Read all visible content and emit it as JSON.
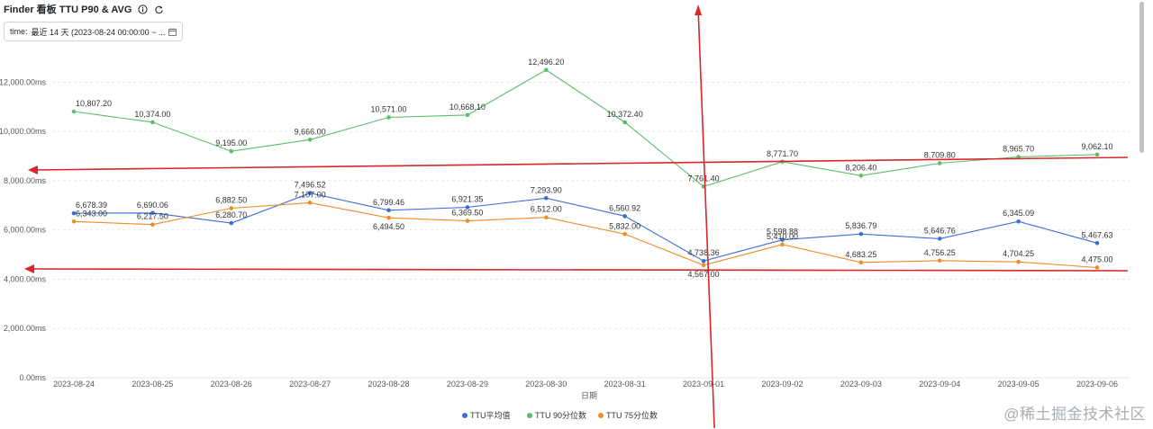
{
  "header": {
    "title": "Finder 看板 TTU P90 & AVG",
    "info_icon": "info-icon",
    "refresh_icon": "refresh-icon"
  },
  "filter": {
    "label": "time:",
    "value": "最近 14 天 (2023-08-24 00:00:00 ~ ...",
    "icon": "calendar-icon"
  },
  "watermark": "@稀土掘金技术社区",
  "chart_data": {
    "type": "line",
    "xlabel": "日期",
    "ylabel": "",
    "ylim": [
      0,
      12500
    ],
    "y_ticks": [
      "0.00ms",
      "2,000.00ms",
      "4,000.00ms",
      "6,000.00ms",
      "8,000.00ms",
      "10,000.00ms",
      "12,000.00ms"
    ],
    "y_tick_values": [
      0,
      2000,
      4000,
      6000,
      8000,
      10000,
      12000
    ],
    "grid": true,
    "legend_position": "bottom",
    "categories": [
      "2023-08-24",
      "2023-08-25",
      "2023-08-26",
      "2023-08-27",
      "2023-08-28",
      "2023-08-29",
      "2023-08-30",
      "2023-08-31",
      "2023-09-01",
      "2023-09-02",
      "2023-09-03",
      "2023-09-04",
      "2023-09-05",
      "2023-09-06"
    ],
    "series": [
      {
        "name": "TTU平均值",
        "color": "#3b6fd8",
        "values": [
          6678.39,
          6690.06,
          6280.7,
          7496.52,
          6799.46,
          6921.35,
          7293.9,
          6560.92,
          4738.36,
          5598.88,
          5836.79,
          5646.76,
          6345.09,
          5467.63
        ],
        "labels": [
          "6,678.39",
          "6,690.06",
          "6,280.70",
          "7,496.52",
          "6,799.46",
          "6,921.35",
          "7,293.90",
          "6,560.92",
          "4,738.36",
          "5,598.88",
          "5,836.79",
          "5,646.76",
          "6,345.09",
          "5,467.63"
        ]
      },
      {
        "name": "TTU 90分位数",
        "color": "#5cbd6a",
        "values": [
          10807.2,
          10374.0,
          9195.0,
          9666.0,
          10571.0,
          10668.1,
          12496.2,
          10372.4,
          7761.4,
          8771.7,
          8206.4,
          8709.8,
          8965.7,
          9062.1
        ],
        "labels": [
          "10,807.20",
          "10,374.00",
          "9,195.00",
          "9,666.00",
          "10,571.00",
          "10,668.10",
          "12,496.20",
          "10,372.40",
          "7,761.40",
          "8,771.70",
          "8,206.40",
          "8,709.80",
          "8,965.70",
          "9,062.10"
        ]
      },
      {
        "name": "TTU 75分位数",
        "color": "#f08c26",
        "values": [
          6343.0,
          6217.5,
          6882.5,
          7107.0,
          6494.5,
          6369.5,
          6512.0,
          5832.0,
          4567.0,
          5410.0,
          4683.25,
          4756.25,
          4704.25,
          4475.0
        ],
        "labels": [
          "6,343.00",
          "6,217.50",
          "6,882.50",
          "7,107.00",
          "6,494.50",
          "6,369.50",
          "6,512.00",
          "5,832.00",
          "4,567.00",
          "5,410.00",
          "4,683.25",
          "4,756.25",
          "4,704.25",
          "4,475.00"
        ]
      }
    ],
    "annotations": [
      {
        "type": "arrow",
        "color": "#d9262a",
        "description": "vertical arrow at 2023-09-01 pointing up"
      },
      {
        "type": "arrow",
        "color": "#d9262a",
        "description": "horizontal arrow near 8,500ms pointing left"
      },
      {
        "type": "arrow",
        "color": "#d9262a",
        "description": "horizontal arrow near 4,400ms pointing left"
      }
    ]
  }
}
